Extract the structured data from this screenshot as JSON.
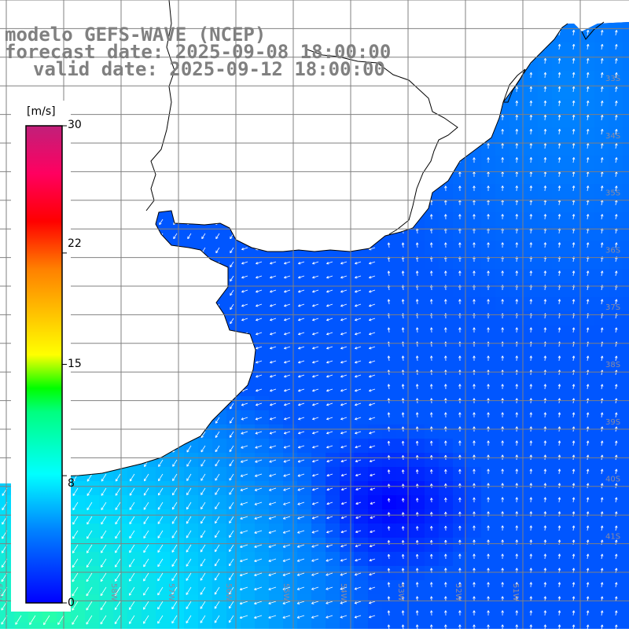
{
  "title": {
    "line1": "modelo GEFS-WAVE (NCEP)",
    "line2": "forecast date: 2025-09-08 18:00:00",
    "line3": "valid date: 2025-09-12 18:00:00"
  },
  "colorbar": {
    "unit": "[m/s]",
    "ticks": [
      "30",
      "22",
      "15",
      "8",
      "0"
    ],
    "tick_values": [
      30,
      22,
      15,
      8,
      0
    ],
    "range": [
      0,
      30
    ],
    "colors": [
      "#0000ff",
      "#0080ff",
      "#00e0ff",
      "#00ff80",
      "#00ff00",
      "#ffff00",
      "#ff8000",
      "#ff0000",
      "#ff0060",
      "#c0207a"
    ]
  },
  "map": {
    "lon_labels": [
      "60W",
      "59W",
      "58W",
      "57W",
      "56W",
      "55W",
      "54W",
      "53W",
      "52W",
      "51W"
    ],
    "lat_labels": [
      "33S",
      "34S",
      "35S",
      "36S",
      "37S",
      "38S",
      "39S",
      "40S",
      "41S"
    ],
    "land_color": "#ffffff",
    "grid_color": "#808080",
    "arrow_color": "#ffffff"
  }
}
